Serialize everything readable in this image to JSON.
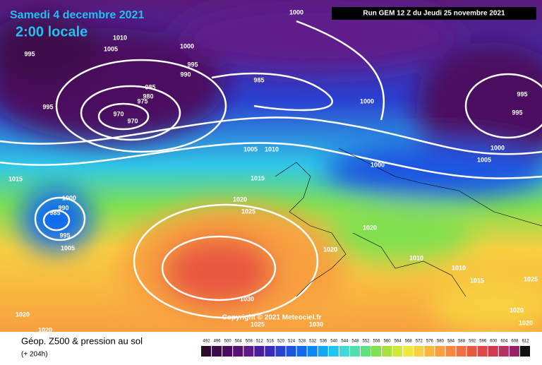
{
  "header": {
    "date": "Samedi 4 decembre 2021",
    "time": "2:00 locale",
    "run": "Run GEM 12 Z du Jeudi 25 novembre 2021"
  },
  "copyright": "Copyright © 2021 Meteociel.fr",
  "footer": {
    "title": "Géop. Z500 & pression au sol",
    "lead": "(+ 204h)"
  },
  "isobar_labels": [
    "1000",
    "1010",
    "1005",
    "1000",
    "995",
    "995",
    "990",
    "985",
    "985",
    "980",
    "975",
    "995",
    "970",
    "970",
    "1000",
    "995",
    "995",
    "1000",
    "1005",
    "1005",
    "1010",
    "1000",
    "1015",
    "1015",
    "1000",
    "990",
    "985",
    "1020",
    "1025",
    "995",
    "1020",
    "1005",
    "1020",
    "1010",
    "1010",
    "1015",
    "1025",
    "1030",
    "1020",
    "1020",
    "1025",
    "1030",
    "1020",
    "1020"
  ],
  "legend": {
    "ticks": [
      492,
      496,
      500,
      504,
      508,
      512,
      516,
      520,
      524,
      528,
      532,
      536,
      540,
      544,
      548,
      552,
      556,
      560,
      564,
      568,
      572,
      576,
      580,
      584,
      588,
      592,
      596,
      600,
      604,
      608,
      612
    ],
    "colors": [
      "#2b0b2e",
      "#3d0a4a",
      "#4b0b5e",
      "#5a0f72",
      "#5e1a8a",
      "#4a1f9e",
      "#3a2cb8",
      "#2a40d0",
      "#1a55e0",
      "#0f6af0",
      "#0a88f5",
      "#10a8f5",
      "#20c4ee",
      "#40d8d8",
      "#50e0b0",
      "#60e080",
      "#80e050",
      "#a8e040",
      "#d0e838",
      "#f0e840",
      "#f8d040",
      "#f8b840",
      "#f8a040",
      "#f88840",
      "#f07040",
      "#e85840",
      "#e04848",
      "#d03850",
      "#b83060",
      "#982068",
      "#101010"
    ]
  }
}
